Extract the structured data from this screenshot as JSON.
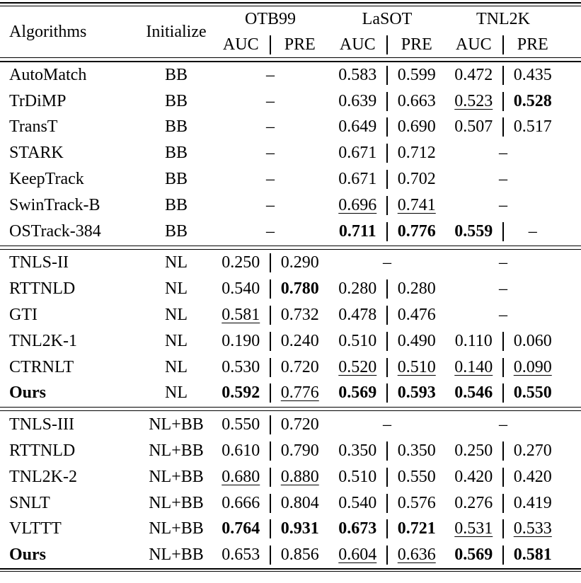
{
  "page": {
    "background": "#ffffff",
    "text_color": "#000000"
  },
  "table": {
    "dash": "–",
    "header": {
      "algorithms_label": "Algorithms",
      "initialize_label": "Initialize",
      "groups": [
        {
          "label": "OTB99",
          "auc_label": "AUC",
          "pre_label": "PRE"
        },
        {
          "label": "LaSOT",
          "auc_label": "AUC",
          "pre_label": "PRE"
        },
        {
          "label": "TNL2K",
          "auc_label": "AUC",
          "pre_label": "PRE"
        }
      ]
    },
    "sections": [
      {
        "rows": [
          {
            "algorithm": "AutoMatch",
            "algorithm_bold": false,
            "initialize": "BB",
            "cells": [
              {
                "dash": true
              },
              {
                "auc": "0.583",
                "auc_style": "normal",
                "pre": "0.599",
                "pre_style": "normal"
              },
              {
                "auc": "0.472",
                "auc_style": "normal",
                "pre": "0.435",
                "pre_style": "normal"
              }
            ]
          },
          {
            "algorithm": "TrDiMP",
            "algorithm_bold": false,
            "initialize": "BB",
            "cells": [
              {
                "dash": true
              },
              {
                "auc": "0.639",
                "auc_style": "normal",
                "pre": "0.663",
                "pre_style": "normal"
              },
              {
                "auc": "0.523",
                "auc_style": "underline",
                "pre": "0.528",
                "pre_style": "bold"
              }
            ]
          },
          {
            "algorithm": "TransT",
            "algorithm_bold": false,
            "initialize": "BB",
            "cells": [
              {
                "dash": true
              },
              {
                "auc": "0.649",
                "auc_style": "normal",
                "pre": "0.690",
                "pre_style": "normal"
              },
              {
                "auc": "0.507",
                "auc_style": "normal",
                "pre": "0.517",
                "pre_style": "normal"
              }
            ]
          },
          {
            "algorithm": "STARK",
            "algorithm_bold": false,
            "initialize": "BB",
            "cells": [
              {
                "dash": true
              },
              {
                "auc": "0.671",
                "auc_style": "normal",
                "pre": "0.712",
                "pre_style": "normal"
              },
              {
                "dash": true
              }
            ]
          },
          {
            "algorithm": "KeepTrack",
            "algorithm_bold": false,
            "initialize": "BB",
            "cells": [
              {
                "dash": true
              },
              {
                "auc": "0.671",
                "auc_style": "normal",
                "pre": "0.702",
                "pre_style": "normal"
              },
              {
                "dash": true
              }
            ]
          },
          {
            "algorithm": "SwinTrack-B",
            "algorithm_bold": false,
            "initialize": "BB",
            "cells": [
              {
                "dash": true
              },
              {
                "auc": "0.696",
                "auc_style": "underline",
                "pre": "0.741",
                "pre_style": "underline"
              },
              {
                "dash": true
              }
            ]
          },
          {
            "algorithm": "OSTrack-384",
            "algorithm_bold": false,
            "initialize": "BB",
            "cells": [
              {
                "dash": true
              },
              {
                "auc": "0.711",
                "auc_style": "bold",
                "pre": "0.776",
                "pre_style": "bold"
              },
              {
                "auc": "0.559",
                "auc_style": "bold",
                "pre": "–",
                "pre_style": "normal"
              }
            ]
          }
        ]
      },
      {
        "rows": [
          {
            "algorithm": "TNLS-II",
            "algorithm_bold": false,
            "initialize": "NL",
            "cells": [
              {
                "auc": "0.250",
                "auc_style": "normal",
                "pre": "0.290",
                "pre_style": "normal"
              },
              {
                "dash": true
              },
              {
                "dash": true
              }
            ]
          },
          {
            "algorithm": "RTTNLD",
            "algorithm_bold": false,
            "initialize": "NL",
            "cells": [
              {
                "auc": "0.540",
                "auc_style": "normal",
                "pre": "0.780",
                "pre_style": "bold"
              },
              {
                "auc": "0.280",
                "auc_style": "normal",
                "pre": "0.280",
                "pre_style": "normal"
              },
              {
                "dash": true
              }
            ]
          },
          {
            "algorithm": "GTI",
            "algorithm_bold": false,
            "initialize": "NL",
            "cells": [
              {
                "auc": "0.581",
                "auc_style": "underline",
                "pre": "0.732",
                "pre_style": "normal"
              },
              {
                "auc": "0.478",
                "auc_style": "normal",
                "pre": "0.476",
                "pre_style": "normal"
              },
              {
                "dash": true
              }
            ]
          },
          {
            "algorithm": "TNL2K-1",
            "algorithm_bold": false,
            "initialize": "NL",
            "cells": [
              {
                "auc": "0.190",
                "auc_style": "normal",
                "pre": "0.240",
                "pre_style": "normal"
              },
              {
                "auc": "0.510",
                "auc_style": "normal",
                "pre": "0.490",
                "pre_style": "normal"
              },
              {
                "auc": "0.110",
                "auc_style": "normal",
                "pre": "0.060",
                "pre_style": "normal"
              }
            ]
          },
          {
            "algorithm": "CTRNLT",
            "algorithm_bold": false,
            "initialize": "NL",
            "cells": [
              {
                "auc": "0.530",
                "auc_style": "normal",
                "pre": "0.720",
                "pre_style": "normal"
              },
              {
                "auc": "0.520",
                "auc_style": "underline",
                "pre": "0.510",
                "pre_style": "underline"
              },
              {
                "auc": "0.140",
                "auc_style": "underline",
                "pre": "0.090",
                "pre_style": "underline"
              }
            ]
          },
          {
            "algorithm": "Ours",
            "algorithm_bold": true,
            "initialize": "NL",
            "cells": [
              {
                "auc": "0.592",
                "auc_style": "bold",
                "pre": "0.776",
                "pre_style": "underline"
              },
              {
                "auc": "0.569",
                "auc_style": "bold",
                "pre": "0.593",
                "pre_style": "bold"
              },
              {
                "auc": "0.546",
                "auc_style": "bold",
                "pre": "0.550",
                "pre_style": "bold"
              }
            ]
          }
        ]
      },
      {
        "rows": [
          {
            "algorithm": "TNLS-III",
            "algorithm_bold": false,
            "initialize": "NL+BB",
            "cells": [
              {
                "auc": "0.550",
                "auc_style": "normal",
                "pre": "0.720",
                "pre_style": "normal"
              },
              {
                "dash": true
              },
              {
                "dash": true
              }
            ]
          },
          {
            "algorithm": "RTTNLD",
            "algorithm_bold": false,
            "initialize": "NL+BB",
            "cells": [
              {
                "auc": "0.610",
                "auc_style": "normal",
                "pre": "0.790",
                "pre_style": "normal"
              },
              {
                "auc": "0.350",
                "auc_style": "normal",
                "pre": "0.350",
                "pre_style": "normal"
              },
              {
                "auc": "0.250",
                "auc_style": "normal",
                "pre": "0.270",
                "pre_style": "normal"
              }
            ]
          },
          {
            "algorithm": "TNL2K-2",
            "algorithm_bold": false,
            "initialize": "NL+BB",
            "cells": [
              {
                "auc": "0.680",
                "auc_style": "underline",
                "pre": "0.880",
                "pre_style": "underline"
              },
              {
                "auc": "0.510",
                "auc_style": "normal",
                "pre": "0.550",
                "pre_style": "normal"
              },
              {
                "auc": "0.420",
                "auc_style": "normal",
                "pre": "0.420",
                "pre_style": "normal"
              }
            ]
          },
          {
            "algorithm": "SNLT",
            "algorithm_bold": false,
            "initialize": "NL+BB",
            "cells": [
              {
                "auc": "0.666",
                "auc_style": "normal",
                "pre": "0.804",
                "pre_style": "normal"
              },
              {
                "auc": "0.540",
                "auc_style": "normal",
                "pre": "0.576",
                "pre_style": "normal"
              },
              {
                "auc": "0.276",
                "auc_style": "normal",
                "pre": "0.419",
                "pre_style": "normal"
              }
            ]
          },
          {
            "algorithm": "VLTTT",
            "algorithm_bold": false,
            "initialize": "NL+BB",
            "cells": [
              {
                "auc": "0.764",
                "auc_style": "bold",
                "pre": "0.931",
                "pre_style": "bold"
              },
              {
                "auc": "0.673",
                "auc_style": "bold",
                "pre": "0.721",
                "pre_style": "bold"
              },
              {
                "auc": "0.531",
                "auc_style": "underline",
                "pre": "0.533",
                "pre_style": "underline"
              }
            ]
          },
          {
            "algorithm": "Ours",
            "algorithm_bold": true,
            "initialize": "NL+BB",
            "cells": [
              {
                "auc": "0.653",
                "auc_style": "normal",
                "pre": "0.856",
                "pre_style": "normal"
              },
              {
                "auc": "0.604",
                "auc_style": "underline",
                "pre": "0.636",
                "pre_style": "underline"
              },
              {
                "auc": "0.569",
                "auc_style": "bold",
                "pre": "0.581",
                "pre_style": "bold"
              }
            ]
          }
        ]
      }
    ]
  }
}
